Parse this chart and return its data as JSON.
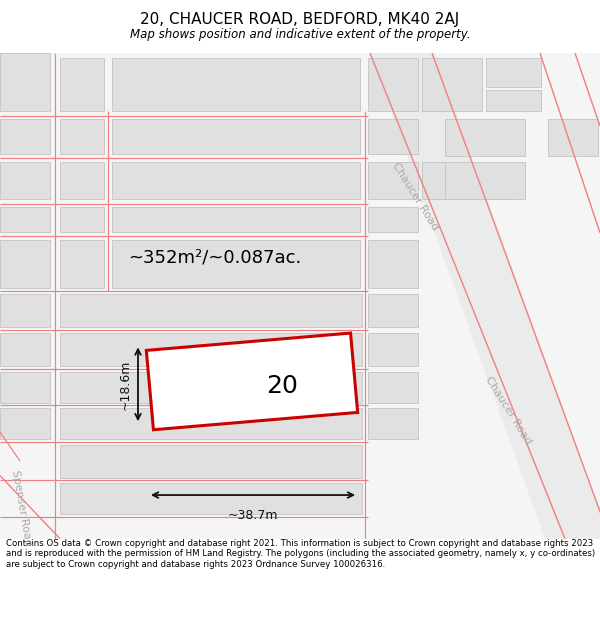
{
  "title_line1": "20, CHAUCER ROAD, BEDFORD, MK40 2AJ",
  "title_line2": "Map shows position and indicative extent of the property.",
  "footer_text": "Contains OS data © Crown copyright and database right 2021. This information is subject to Crown copyright and database rights 2023 and is reproduced with the permission of HM Land Registry. The polygons (including the associated geometry, namely x, y co-ordinates) are subject to Crown copyright and database rights 2023 Ordnance Survey 100026316.",
  "area_label": "~352m²/~0.087ac.",
  "width_label": "~38.7m",
  "height_label": "~18.6m",
  "plot_number": "20",
  "map_bg": "#f2f2f2",
  "road_color": "#f08080",
  "building_fill": "#e0e0e0",
  "building_edge": "#c8c8c8",
  "plot_outline": "#cc0000",
  "plot_fill": "#ffffff",
  "road_label_color": "#aaaaaa",
  "dim_color": "#111111",
  "title_fontsize": 11,
  "subtitle_fontsize": 8.5,
  "footer_fontsize": 6.2,
  "area_fontsize": 13,
  "plot_num_fontsize": 18,
  "dim_fontsize": 9,
  "road_fontsize": 8
}
